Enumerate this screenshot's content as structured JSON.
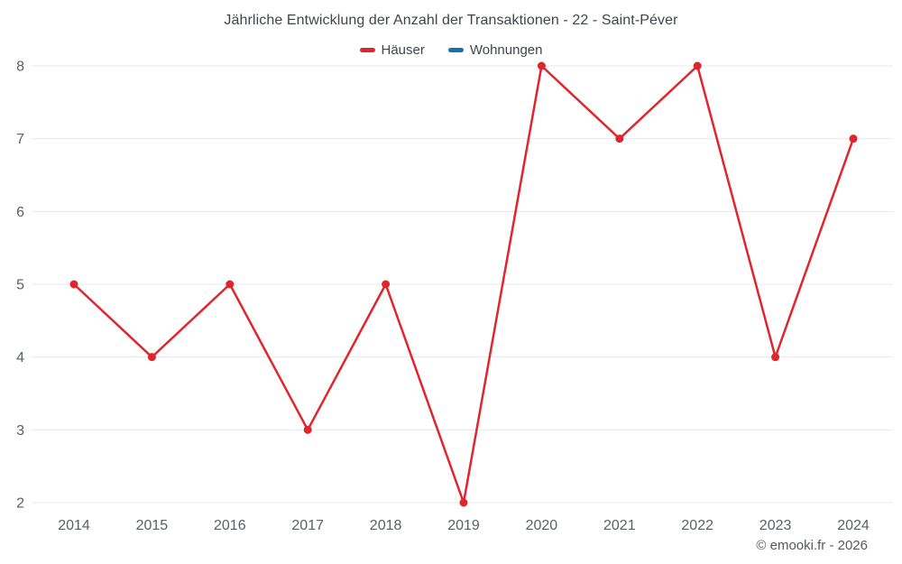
{
  "chart_data": {
    "type": "line",
    "title": "Jährliche Entwicklung der Anzahl der Transaktionen - 22 - Saint-Péver",
    "categories": [
      "2014",
      "2015",
      "2016",
      "2017",
      "2018",
      "2019",
      "2020",
      "2021",
      "2022",
      "2023",
      "2024"
    ],
    "series": [
      {
        "name": "Häuser",
        "color": "#e0252c",
        "values": [
          5,
          4,
          5,
          3,
          5,
          2,
          8,
          7,
          8,
          4,
          7
        ]
      },
      {
        "name": "Wohnungen",
        "color": "#1271b5",
        "values": []
      }
    ],
    "xlabel": "",
    "ylabel": "",
    "ylim": [
      2,
      8
    ],
    "yticks": [
      2,
      3,
      4,
      5,
      6,
      7,
      8
    ],
    "grid": true,
    "legend_position": "top",
    "grid_color": "#e8e8e8",
    "tick_color": "#5b6066"
  },
  "footer": {
    "copyright": "© emooki.fr - 2026"
  }
}
